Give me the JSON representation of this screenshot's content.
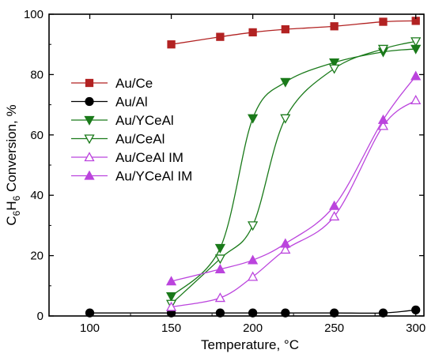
{
  "chart_data": {
    "type": "line",
    "xlabel": "Temperature, °C",
    "ylabel": "C6H6 Conversion, %",
    "xlim": [
      75,
      305
    ],
    "ylim": [
      0,
      100
    ],
    "x_ticks": [
      100,
      150,
      200,
      250,
      300
    ],
    "y_ticks": [
      0,
      20,
      40,
      60,
      80,
      100
    ],
    "legend_position": "top-left",
    "grid": false,
    "series": [
      {
        "name": "Au/Ce",
        "color": "#b22222",
        "marker": "square-filled",
        "x": [
          150,
          180,
          200,
          220,
          250,
          280,
          300
        ],
        "y": [
          90,
          92.5,
          94,
          95,
          96,
          97.5,
          97.8
        ]
      },
      {
        "name": "Au/Al",
        "color": "#000000",
        "marker": "circle-filled",
        "x": [
          100,
          150,
          180,
          200,
          220,
          250,
          280,
          300
        ],
        "y": [
          1,
          1,
          1,
          1,
          1,
          1,
          1,
          2
        ]
      },
      {
        "name": "Au/YCeAl",
        "color": "#1a7a1a",
        "marker": "triangle-down-filled",
        "x": [
          150,
          180,
          200,
          220,
          250,
          280,
          300
        ],
        "y": [
          6.5,
          22.5,
          65.5,
          77.5,
          84,
          87.5,
          88.5
        ]
      },
      {
        "name": "Au/CeAl",
        "color": "#1a7a1a",
        "marker": "triangle-down-open",
        "x": [
          150,
          180,
          200,
          220,
          250,
          280,
          300
        ],
        "y": [
          4,
          19,
          30,
          65.5,
          82,
          88.5,
          91
        ]
      },
      {
        "name": "Au/CeAl IM",
        "color": "#bb44dd",
        "marker": "triangle-up-open",
        "x": [
          150,
          180,
          200,
          220,
          250,
          280,
          300
        ],
        "y": [
          3,
          6,
          13,
          22,
          33,
          63,
          71.5
        ]
      },
      {
        "name": "Au/YCeAl IM",
        "color": "#bb44dd",
        "marker": "triangle-up-filled",
        "x": [
          150,
          180,
          200,
          220,
          250,
          280,
          300
        ],
        "y": [
          11.5,
          15.5,
          18.5,
          24,
          36.5,
          65,
          79.5
        ]
      }
    ]
  }
}
